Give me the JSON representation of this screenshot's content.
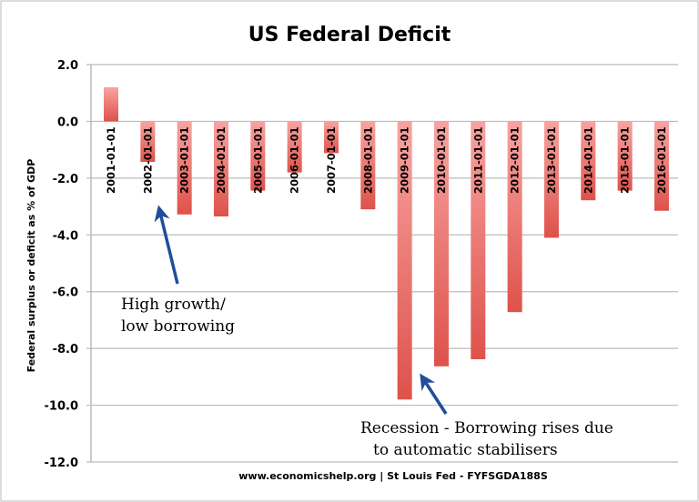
{
  "chart_data": {
    "type": "bar",
    "title": "US Federal Deficit",
    "ylabel": "Federal surplus or deficit as % of GDP",
    "xlabel": "",
    "ylim": [
      -12,
      2
    ],
    "yticks": [
      "2.0",
      "0.0",
      "-2.0",
      "-4.0",
      "-6.0",
      "-8.0",
      "-10.0",
      "-12.0"
    ],
    "ytick_values": [
      2,
      0,
      -2,
      -4,
      -6,
      -8,
      -10,
      -12
    ],
    "grid": true,
    "categories": [
      "2001-01-01",
      "2002-01-01",
      "2003-01-01",
      "2004-01-01",
      "2005-01-01",
      "2006-01-01",
      "2007-01-01",
      "2008-01-01",
      "2009-01-01",
      "2010-01-01",
      "2011-01-01",
      "2012-01-01",
      "2013-01-01",
      "2014-01-01",
      "2015-01-01",
      "2016-01-01"
    ],
    "values": [
      1.2,
      -1.43,
      -3.28,
      -3.35,
      -2.44,
      -1.8,
      -1.12,
      -3.1,
      -9.8,
      -8.63,
      -8.38,
      -6.72,
      -4.1,
      -2.78,
      -2.44,
      -3.15
    ],
    "bar_color_top": "#f8a3a0",
    "bar_color_bottom": "#de524b",
    "annotations": [
      {
        "lines": [
          "High growth/",
          "low borrowing"
        ],
        "arrow_color": "#1f4e9c"
      },
      {
        "lines": [
          "Recession - Borrowing rises due",
          "to automatic stabilisers"
        ],
        "arrow_color": "#1f4e9c"
      }
    ],
    "footer": "www.economicshelp.org | St Louis Fed - FYFSGDA188S"
  }
}
